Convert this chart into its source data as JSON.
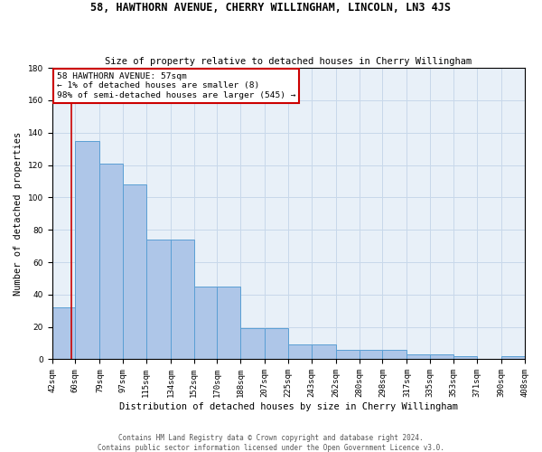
{
  "title": "58, HAWTHORN AVENUE, CHERRY WILLINGHAM, LINCOLN, LN3 4JS",
  "subtitle": "Size of property relative to detached houses in Cherry Willingham",
  "xlabel": "Distribution of detached houses by size in Cherry Willingham",
  "ylabel": "Number of detached properties",
  "footer_line1": "Contains HM Land Registry data © Crown copyright and database right 2024.",
  "footer_line2": "Contains public sector information licensed under the Open Government Licence v3.0.",
  "bar_edges": [
    42,
    60,
    79,
    97,
    115,
    134,
    152,
    170,
    188,
    207,
    225,
    243,
    262,
    280,
    298,
    317,
    335,
    353,
    371,
    390,
    408
  ],
  "bar_heights": [
    32,
    135,
    121,
    108,
    74,
    74,
    45,
    45,
    19,
    19,
    9,
    9,
    6,
    6,
    6,
    3,
    3,
    2,
    0,
    2,
    2
  ],
  "bar_color": "#aec6e8",
  "bar_edge_color": "#5a9fd4",
  "grid_color": "#c8d8ea",
  "bg_color": "#e8f0f8",
  "annotation_text": "58 HAWTHORN AVENUE: 57sqm\n← 1% of detached houses are smaller (8)\n98% of semi-detached houses are larger (545) →",
  "annotation_box_color": "#ffffff",
  "annotation_box_edge_color": "#cc0000",
  "property_line_x": 57,
  "property_line_color": "#cc0000",
  "ylim": [
    0,
    180
  ],
  "tick_labels": [
    "42sqm",
    "60sqm",
    "79sqm",
    "97sqm",
    "115sqm",
    "134sqm",
    "152sqm",
    "170sqm",
    "188sqm",
    "207sqm",
    "225sqm",
    "243sqm",
    "262sqm",
    "280sqm",
    "298sqm",
    "317sqm",
    "335sqm",
    "353sqm",
    "371sqm",
    "390sqm",
    "408sqm"
  ],
  "title_fontsize": 8.5,
  "subtitle_fontsize": 7.5,
  "ylabel_fontsize": 7.5,
  "xlabel_fontsize": 7.5,
  "tick_fontsize": 6.5,
  "annotation_fontsize": 6.8,
  "footer_fontsize": 5.5
}
